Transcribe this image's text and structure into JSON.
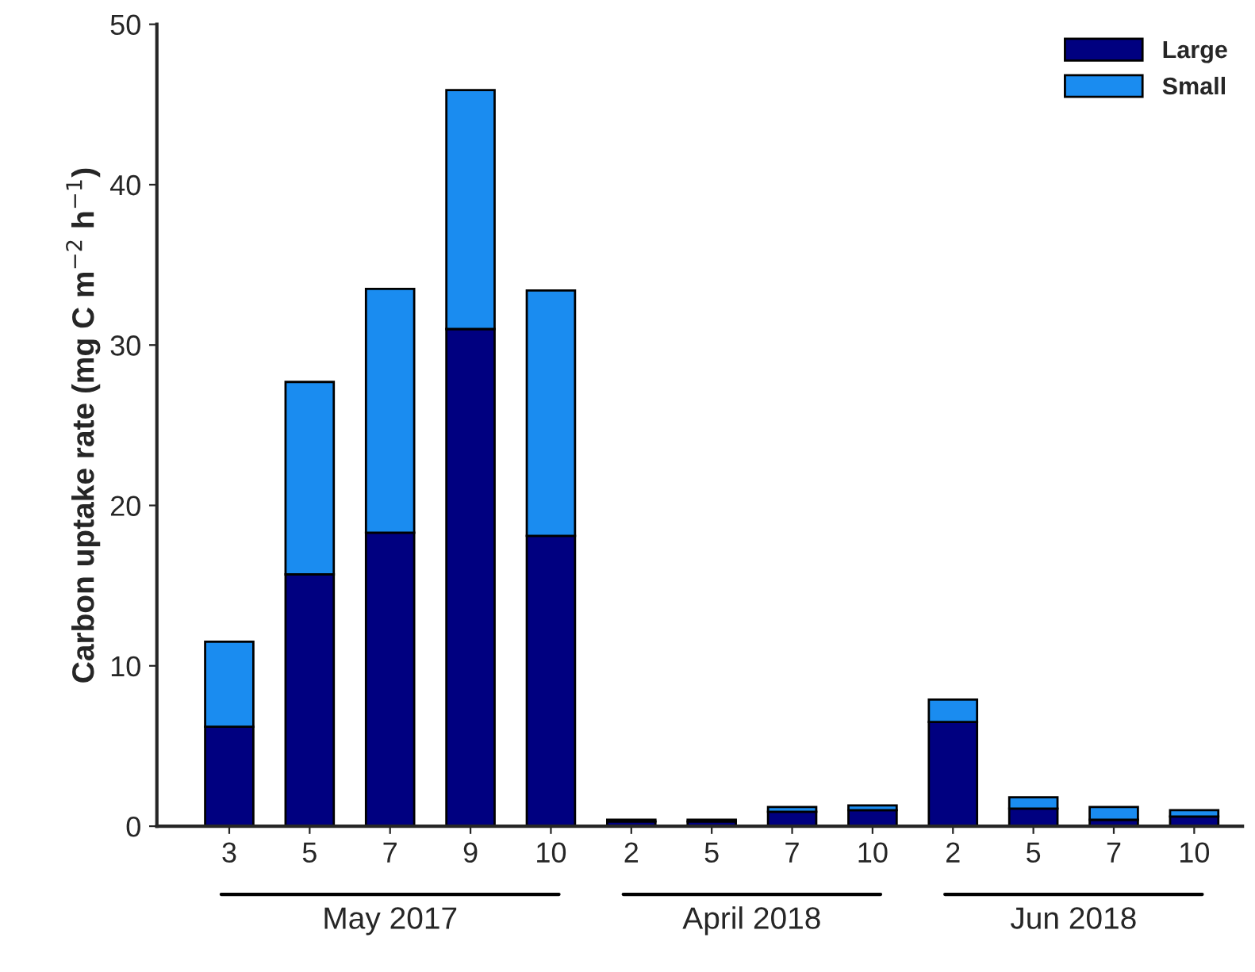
{
  "chart_data": {
    "type": "bar",
    "stacked": true,
    "ylabel": "Carbon uptake rate (mg C m$^{−2}$ h$^{−1}$)",
    "categories": [
      "3",
      "5",
      "7",
      "9",
      "10",
      "2",
      "5",
      "7",
      "10",
      "2",
      "5",
      "7",
      "10"
    ],
    "series": [
      {
        "name": "Large",
        "color": "#000080",
        "values": [
          6.2,
          15.7,
          18.3,
          31.0,
          18.1,
          0.3,
          0.3,
          0.9,
          1.0,
          6.5,
          1.1,
          0.4,
          0.6
        ]
      },
      {
        "name": "Small",
        "color": "#1a8cf0",
        "values": [
          5.3,
          12.0,
          15.2,
          14.9,
          15.3,
          0.1,
          0.1,
          0.3,
          0.3,
          1.4,
          0.7,
          0.8,
          0.4
        ]
      }
    ],
    "ylim": [
      0,
      50
    ],
    "yticks": [
      0,
      10,
      20,
      30,
      40,
      50
    ],
    "grid": false,
    "legend": "top right",
    "annotations": [
      "May 2017",
      "April 2018",
      "Jun 2018"
    ]
  }
}
